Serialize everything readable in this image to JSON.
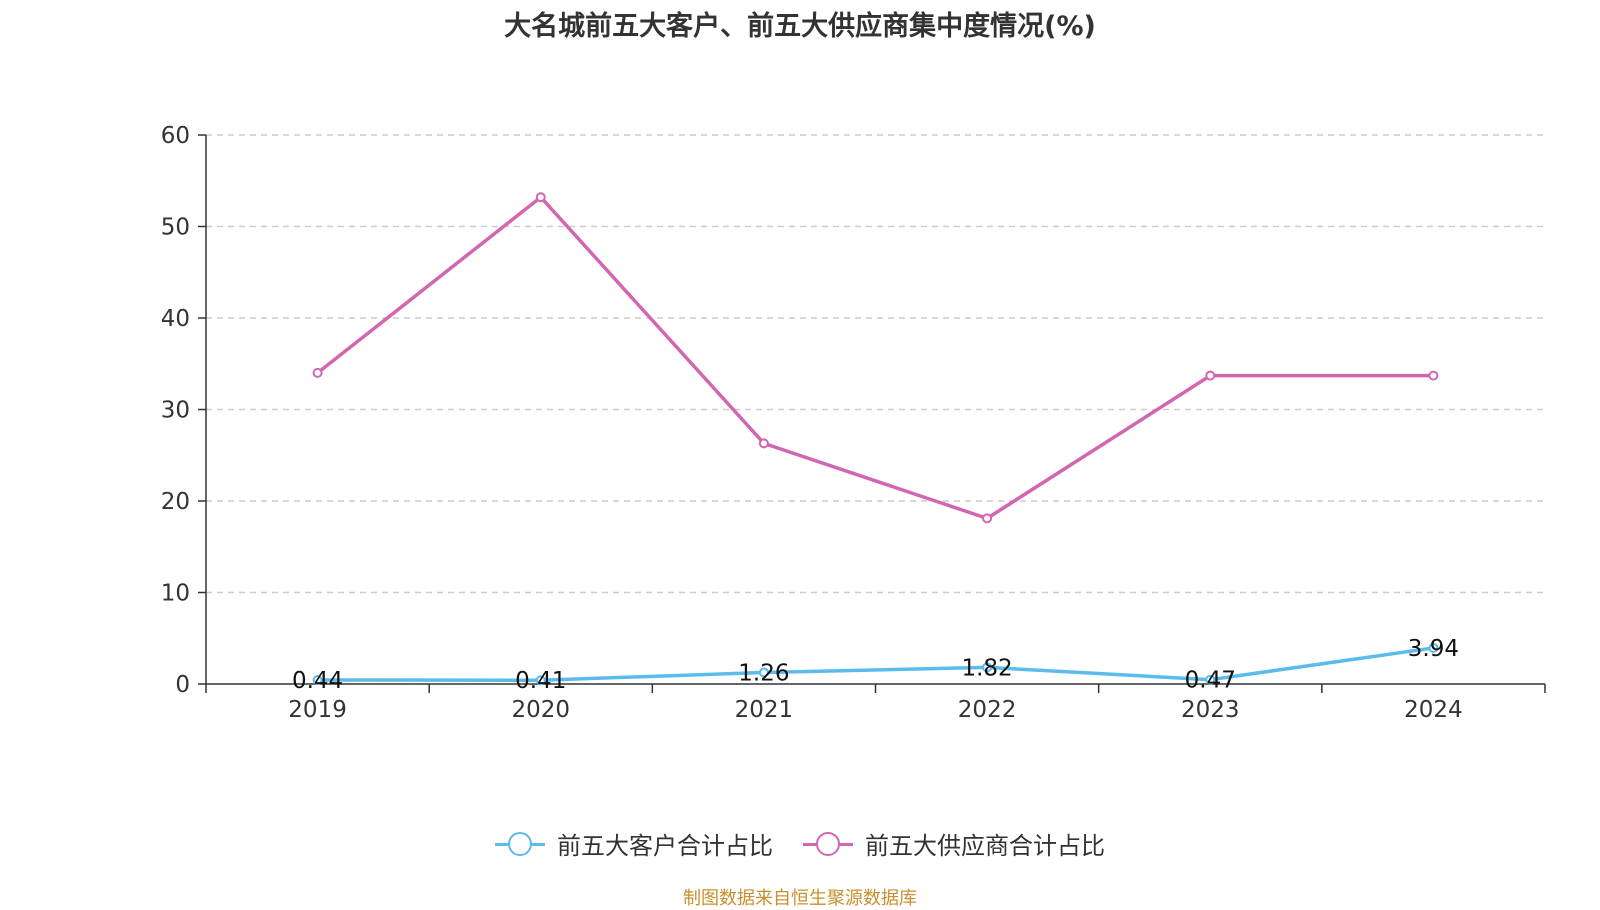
{
  "chart_data": {
    "type": "line",
    "title": "大名城前五大客户、前五大供应商集中度情况(%)",
    "categories": [
      "2019",
      "2020",
      "2021",
      "2022",
      "2023",
      "2024"
    ],
    "ylim": [
      0,
      60
    ],
    "yticks": [
      0,
      10,
      20,
      30,
      40,
      50,
      60
    ],
    "grid": true,
    "legend_position": "bottom",
    "series": [
      {
        "name": "前五大客户合计占比",
        "color": "#5bbcec",
        "values": [
          0.44,
          0.41,
          1.26,
          1.82,
          0.47,
          3.94
        ],
        "labels": [
          "0.44",
          "0.41",
          "1.26",
          "1.82",
          "0.47",
          "3.94"
        ]
      },
      {
        "name": "前五大供应商合计占比",
        "color": "#d366b0",
        "values": [
          34.0,
          53.2,
          26.3,
          18.1,
          33.7,
          33.7
        ]
      }
    ]
  },
  "legend": {
    "customers": "前五大客户合计占比",
    "suppliers": "前五大供应商合计占比"
  },
  "source": "制图数据来自恒生聚源数据库"
}
